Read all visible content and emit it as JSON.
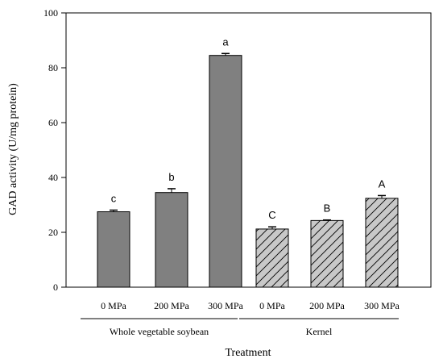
{
  "chart_data": {
    "type": "bar",
    "xlabel": "Treatment",
    "ylabel": "GAD activity (U/mg protein)",
    "ylim": [
      0,
      100
    ],
    "yticks": [
      0,
      20,
      40,
      60,
      80,
      100
    ],
    "categories": [
      "0 MPa",
      "200 MPa",
      "300 MPa",
      "0 MPa",
      "200 MPa",
      "300 MPa"
    ],
    "values": [
      27.5,
      34.5,
      84.5,
      21.2,
      24.3,
      32.4
    ],
    "errors": [
      0.6,
      1.4,
      0.7,
      0.8,
      0.2,
      1.0
    ],
    "letters": [
      "c",
      "b",
      "a",
      "C",
      "B",
      "A"
    ],
    "groups": [
      {
        "label": "Whole vegetable soybean",
        "members": [
          0,
          1,
          2
        ],
        "fill": "#808080",
        "pattern": "solid"
      },
      {
        "label": "Kernel",
        "members": [
          3,
          4,
          5
        ],
        "fill": "#c8c8c8",
        "pattern": "diagonal-hatch"
      }
    ],
    "grid": false,
    "legend": "none"
  }
}
